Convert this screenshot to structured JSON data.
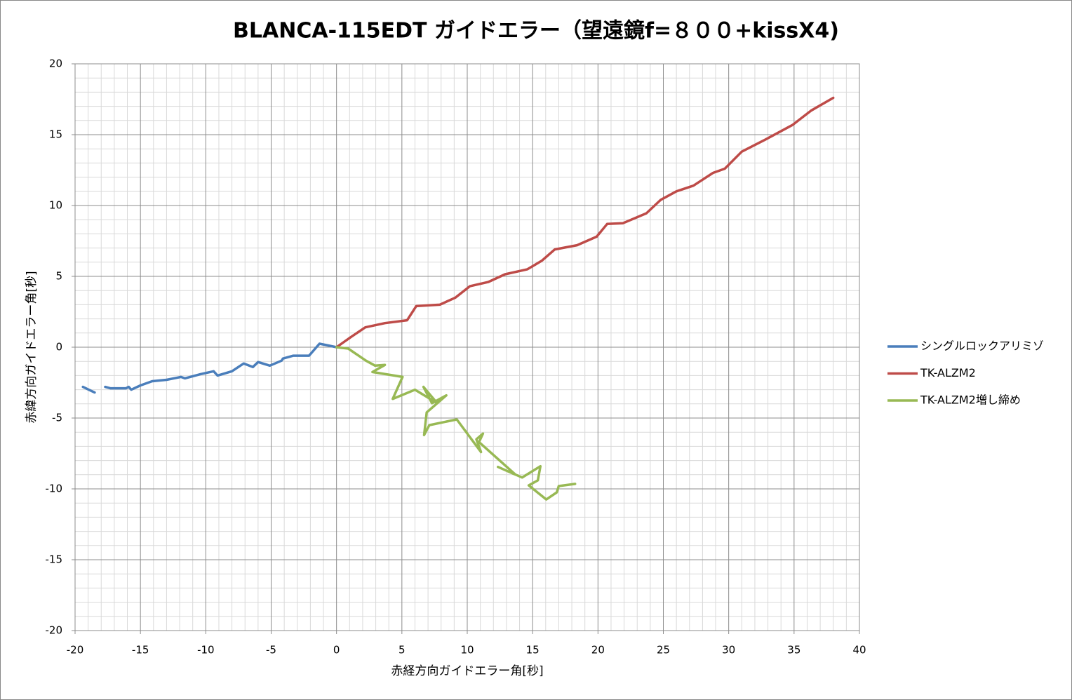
{
  "chart_data": {
    "type": "scatter-line",
    "title": "BLANCA-115EDT ガイドエラー（望遠鏡f=８００+kissX4)",
    "xlabel": "赤経方向ガイドエラー角[秒]",
    "ylabel": "赤緯方向ガイドエラー角[秒]",
    "xlim": [
      -20,
      40
    ],
    "ylim": [
      -20,
      20
    ],
    "xticks": [
      -20,
      -15,
      -10,
      -5,
      0,
      5,
      10,
      15,
      20,
      25,
      30,
      35,
      40
    ],
    "yticks": [
      -20,
      -15,
      -10,
      -5,
      0,
      5,
      10,
      15,
      20
    ],
    "grid": true,
    "minor_grid": true,
    "legend": "right",
    "series": [
      {
        "name": "シングルロックアリミゾ",
        "color": "#4a7ebb",
        "x": [
          -19.4,
          -18.5,
          null,
          -17.7,
          -17.3,
          -16.1,
          -15.9,
          -15.7,
          -15.0,
          -14.1,
          -13.0,
          -11.9,
          -11.6,
          -10.4,
          -9.4,
          -9.1,
          -8.0,
          -7.1,
          -6.4,
          -6.0,
          -5.1,
          -4.2,
          -4.1,
          -3.3,
          -2.1,
          -1.3,
          0
        ],
        "values": [
          -2.8,
          -3.2,
          null,
          -2.8,
          -2.9,
          -2.9,
          -2.8,
          -3.0,
          -2.7,
          -2.4,
          -2.3,
          -2.1,
          -2.2,
          -1.9,
          -1.7,
          -2.0,
          -1.7,
          -1.15,
          -1.4,
          -1.05,
          -1.3,
          -0.95,
          -0.8,
          -0.6,
          -0.6,
          0.25,
          0
        ]
      },
      {
        "name": "TK-ALZM2",
        "color": "#be4b48",
        "x": [
          0,
          1.07,
          2.2,
          3.7,
          5.4,
          6.1,
          7.9,
          9.1,
          10.2,
          11.6,
          12.9,
          14.6,
          15.7,
          16.7,
          18.4,
          19.9,
          20.7,
          21.9,
          23.7,
          24.8,
          26.0,
          27.3,
          28.8,
          29.7,
          31.0,
          32.8,
          34.9,
          36.3,
          38.0
        ],
        "values": [
          0,
          0.7,
          1.4,
          1.7,
          1.9,
          2.9,
          3.0,
          3.5,
          4.3,
          4.6,
          5.15,
          5.5,
          6.1,
          6.9,
          7.2,
          7.8,
          8.7,
          8.75,
          9.45,
          10.4,
          11.0,
          11.4,
          12.3,
          12.6,
          13.8,
          14.65,
          15.7,
          16.7,
          17.6
        ]
      },
      {
        "name": "TK-ALZM2増し締め",
        "color": "#98b954",
        "x": [
          0,
          0.9,
          2.25,
          2.95,
          3.7,
          2.75,
          5.05,
          4.3,
          6.0,
          7.7,
          6.65,
          7.3,
          8.4,
          6.9,
          6.7,
          7.1,
          9.2,
          11.05,
          10.7,
          11.2,
          10.9,
          13.7,
          12.35,
          14.2,
          15.6,
          15.4,
          14.7,
          16.05,
          16.85,
          17.0,
          18.25
        ],
        "values": [
          0,
          -0.1,
          -0.95,
          -1.3,
          -1.25,
          -1.75,
          -2.1,
          -3.65,
          -3.0,
          -3.95,
          -2.8,
          -3.95,
          -3.4,
          -4.6,
          -6.2,
          -5.5,
          -5.1,
          -7.4,
          -6.5,
          -6.1,
          -6.7,
          -9.0,
          -8.45,
          -9.2,
          -8.4,
          -9.4,
          -9.75,
          -10.75,
          -10.25,
          -9.8,
          -9.65
        ]
      }
    ]
  }
}
